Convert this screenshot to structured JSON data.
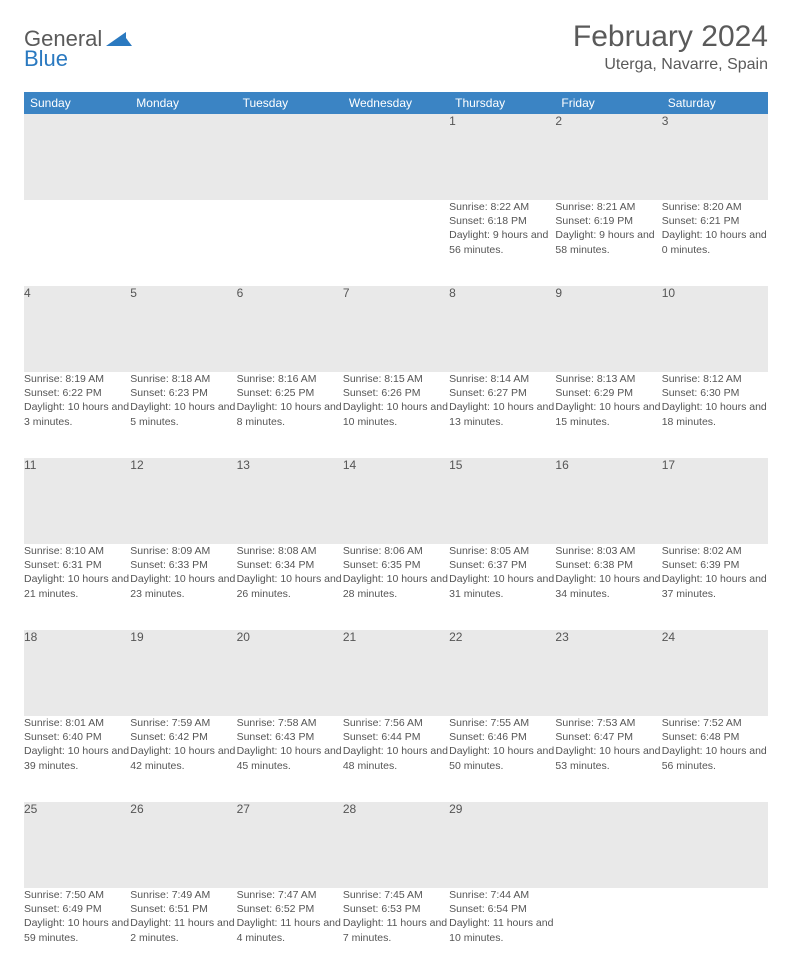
{
  "brand": {
    "part1": "General",
    "part2": "Blue"
  },
  "title": "February 2024",
  "location": "Uterga, Navarre, Spain",
  "colors": {
    "header_bg": "#3b84c4",
    "header_text": "#ffffff",
    "daynum_bg": "#e9e9e9",
    "border_top": "#5f7a94",
    "text": "#555555",
    "logo_blue": "#2a79c0"
  },
  "weekdays": [
    "Sunday",
    "Monday",
    "Tuesday",
    "Wednesday",
    "Thursday",
    "Friday",
    "Saturday"
  ],
  "weeks": [
    [
      null,
      null,
      null,
      null,
      {
        "n": "1",
        "sr": "8:22 AM",
        "ss": "6:18 PM",
        "dl": "9 hours and 56 minutes."
      },
      {
        "n": "2",
        "sr": "8:21 AM",
        "ss": "6:19 PM",
        "dl": "9 hours and 58 minutes."
      },
      {
        "n": "3",
        "sr": "8:20 AM",
        "ss": "6:21 PM",
        "dl": "10 hours and 0 minutes."
      }
    ],
    [
      {
        "n": "4",
        "sr": "8:19 AM",
        "ss": "6:22 PM",
        "dl": "10 hours and 3 minutes."
      },
      {
        "n": "5",
        "sr": "8:18 AM",
        "ss": "6:23 PM",
        "dl": "10 hours and 5 minutes."
      },
      {
        "n": "6",
        "sr": "8:16 AM",
        "ss": "6:25 PM",
        "dl": "10 hours and 8 minutes."
      },
      {
        "n": "7",
        "sr": "8:15 AM",
        "ss": "6:26 PM",
        "dl": "10 hours and 10 minutes."
      },
      {
        "n": "8",
        "sr": "8:14 AM",
        "ss": "6:27 PM",
        "dl": "10 hours and 13 minutes."
      },
      {
        "n": "9",
        "sr": "8:13 AM",
        "ss": "6:29 PM",
        "dl": "10 hours and 15 minutes."
      },
      {
        "n": "10",
        "sr": "8:12 AM",
        "ss": "6:30 PM",
        "dl": "10 hours and 18 minutes."
      }
    ],
    [
      {
        "n": "11",
        "sr": "8:10 AM",
        "ss": "6:31 PM",
        "dl": "10 hours and 21 minutes."
      },
      {
        "n": "12",
        "sr": "8:09 AM",
        "ss": "6:33 PM",
        "dl": "10 hours and 23 minutes."
      },
      {
        "n": "13",
        "sr": "8:08 AM",
        "ss": "6:34 PM",
        "dl": "10 hours and 26 minutes."
      },
      {
        "n": "14",
        "sr": "8:06 AM",
        "ss": "6:35 PM",
        "dl": "10 hours and 28 minutes."
      },
      {
        "n": "15",
        "sr": "8:05 AM",
        "ss": "6:37 PM",
        "dl": "10 hours and 31 minutes."
      },
      {
        "n": "16",
        "sr": "8:03 AM",
        "ss": "6:38 PM",
        "dl": "10 hours and 34 minutes."
      },
      {
        "n": "17",
        "sr": "8:02 AM",
        "ss": "6:39 PM",
        "dl": "10 hours and 37 minutes."
      }
    ],
    [
      {
        "n": "18",
        "sr": "8:01 AM",
        "ss": "6:40 PM",
        "dl": "10 hours and 39 minutes."
      },
      {
        "n": "19",
        "sr": "7:59 AM",
        "ss": "6:42 PM",
        "dl": "10 hours and 42 minutes."
      },
      {
        "n": "20",
        "sr": "7:58 AM",
        "ss": "6:43 PM",
        "dl": "10 hours and 45 minutes."
      },
      {
        "n": "21",
        "sr": "7:56 AM",
        "ss": "6:44 PM",
        "dl": "10 hours and 48 minutes."
      },
      {
        "n": "22",
        "sr": "7:55 AM",
        "ss": "6:46 PM",
        "dl": "10 hours and 50 minutes."
      },
      {
        "n": "23",
        "sr": "7:53 AM",
        "ss": "6:47 PM",
        "dl": "10 hours and 53 minutes."
      },
      {
        "n": "24",
        "sr": "7:52 AM",
        "ss": "6:48 PM",
        "dl": "10 hours and 56 minutes."
      }
    ],
    [
      {
        "n": "25",
        "sr": "7:50 AM",
        "ss": "6:49 PM",
        "dl": "10 hours and 59 minutes."
      },
      {
        "n": "26",
        "sr": "7:49 AM",
        "ss": "6:51 PM",
        "dl": "11 hours and 2 minutes."
      },
      {
        "n": "27",
        "sr": "7:47 AM",
        "ss": "6:52 PM",
        "dl": "11 hours and 4 minutes."
      },
      {
        "n": "28",
        "sr": "7:45 AM",
        "ss": "6:53 PM",
        "dl": "11 hours and 7 minutes."
      },
      {
        "n": "29",
        "sr": "7:44 AM",
        "ss": "6:54 PM",
        "dl": "11 hours and 10 minutes."
      },
      null,
      null
    ]
  ],
  "labels": {
    "sunrise": "Sunrise:",
    "sunset": "Sunset:",
    "daylight": "Daylight:"
  }
}
